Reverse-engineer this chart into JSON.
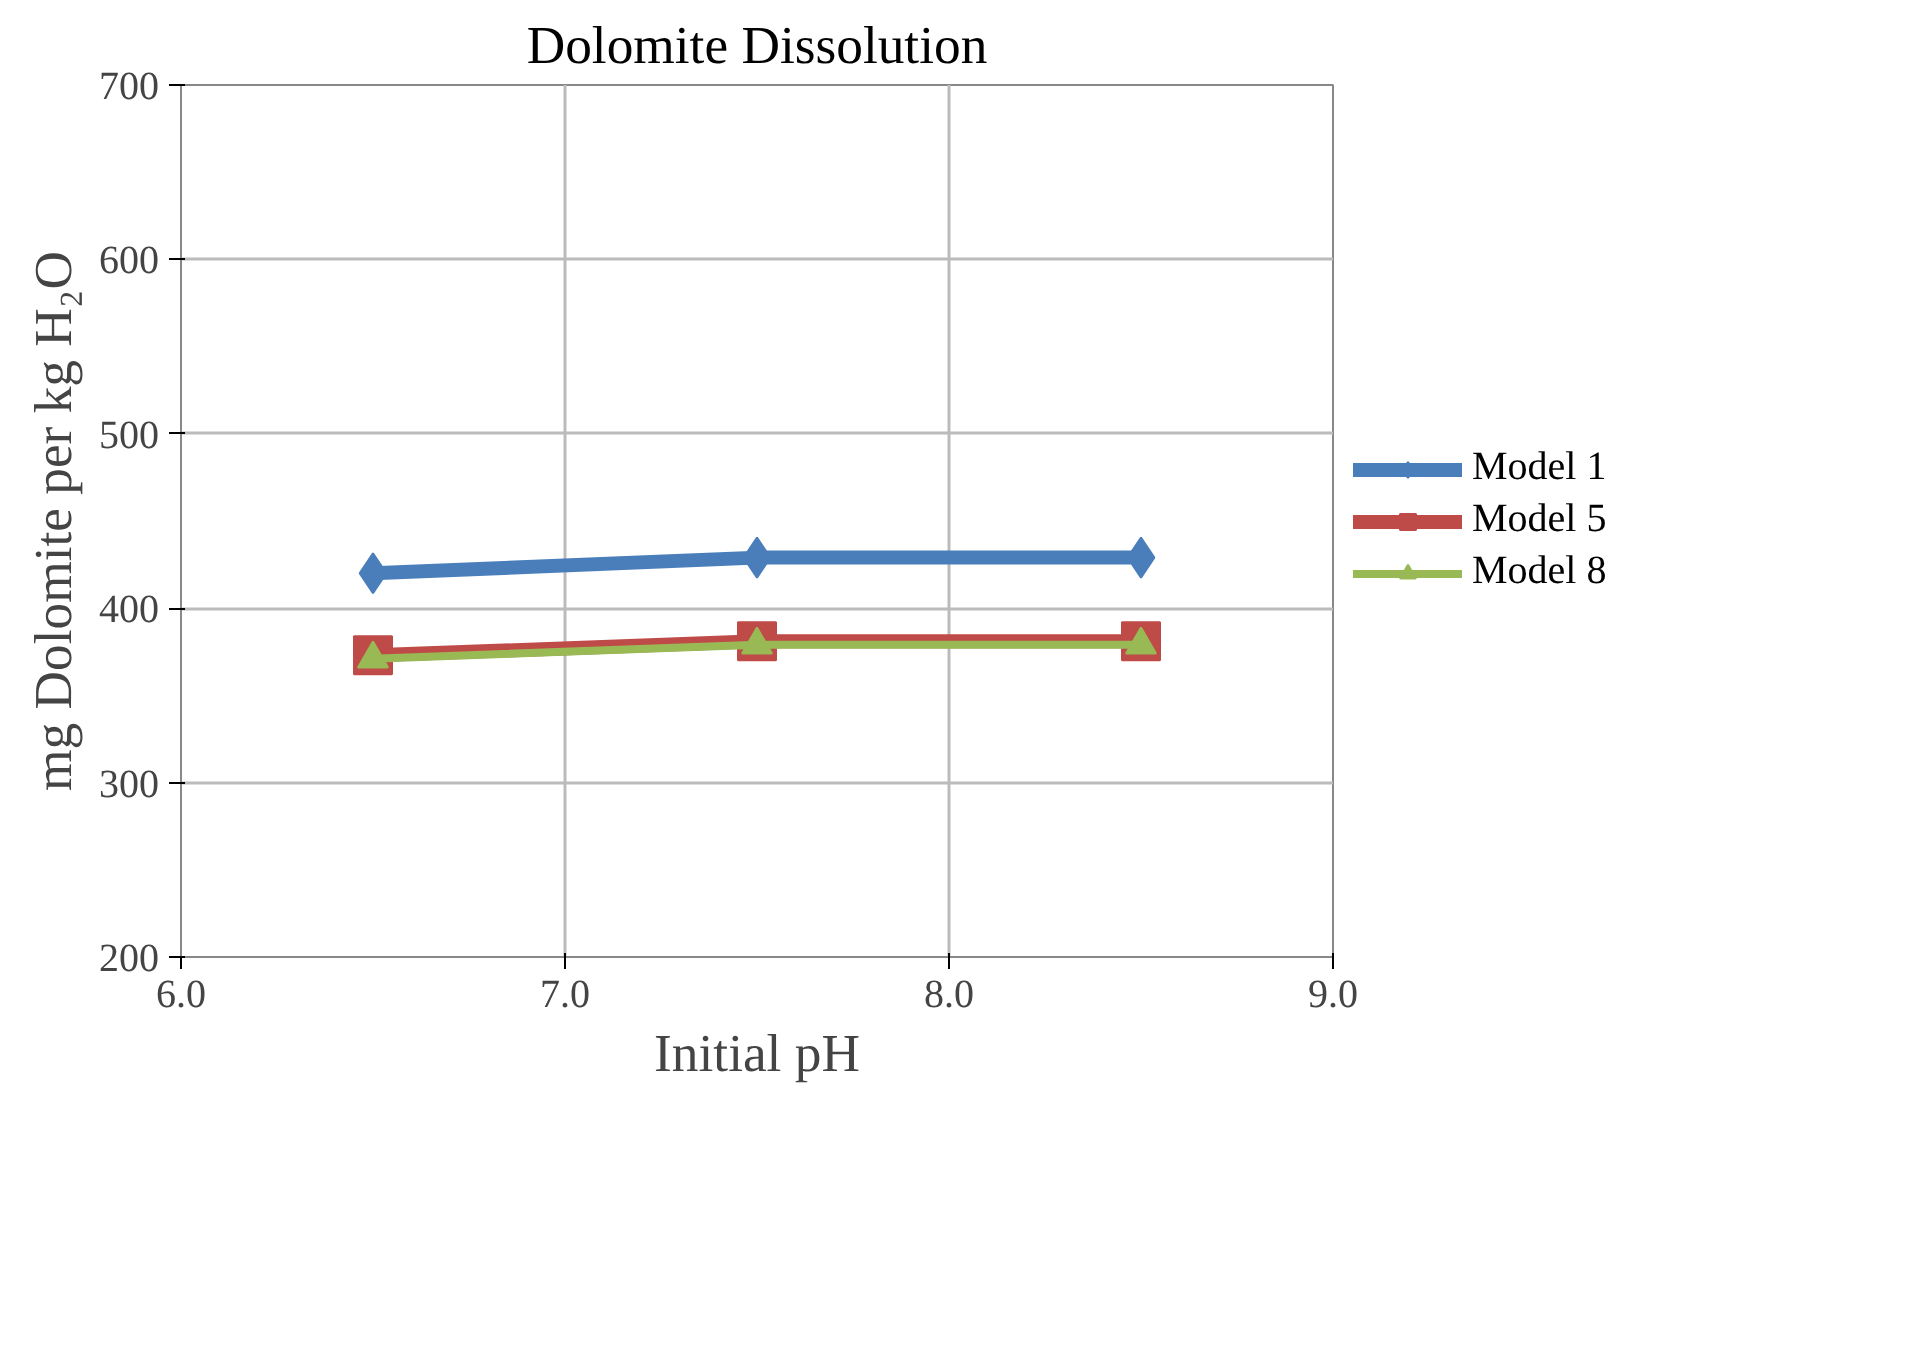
{
  "chart_data": {
    "type": "line",
    "title": "Dolomite Dissolution",
    "xlabel": "Initial pH",
    "ylabel": "mg Dolomite per kg H₂O",
    "x": [
      6.5,
      7.5,
      8.5
    ],
    "series": [
      {
        "name": "Model 1",
        "color": "#4a7ebb",
        "marker": "diamond",
        "values": [
          420,
          429,
          429
        ]
      },
      {
        "name": "Model 5",
        "color": "#be4b48",
        "marker": "square",
        "values": [
          373,
          381,
          381
        ]
      },
      {
        "name": "Model 8",
        "color": "#98b954",
        "marker": "triangle",
        "values": [
          371,
          379,
          379
        ]
      }
    ],
    "xlim": [
      6.0,
      9.0
    ],
    "xticks": [
      {
        "value": 6,
        "label": "6.0"
      },
      {
        "value": 7,
        "label": "7.0"
      },
      {
        "value": 8,
        "label": "8.0"
      },
      {
        "value": 9,
        "label": "9.0"
      }
    ],
    "ylim": [
      200,
      700
    ],
    "yticks": [
      200,
      300,
      400,
      500,
      600,
      700
    ],
    "grid": true,
    "legend": "right",
    "line_style": "solid"
  }
}
